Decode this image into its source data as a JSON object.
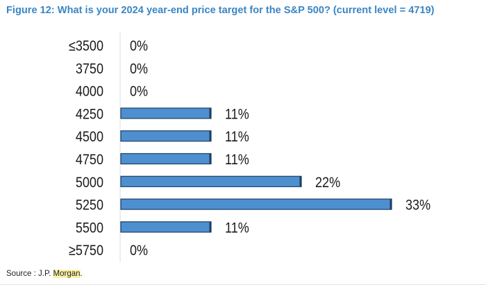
{
  "figure": {
    "title": "Figure 12: What is your 2024 year-end price target for the S&P 500? (current level = 4719)"
  },
  "source": {
    "prefix": "Source : J.P. ",
    "highlight": "Morgan",
    "suffix": "."
  },
  "colors": {
    "title": "#3a86c4",
    "bar_fill": "#4e8fd0",
    "bar_stroke": "#1b3f63",
    "text": "#1a1a1a"
  },
  "chart_data": {
    "type": "bar",
    "orientation": "horizontal",
    "title": "Figure 12: What is your 2024 year-end price target for the S&P 500? (current level = 4719)",
    "categories": [
      "≤3500",
      "3750",
      "4000",
      "4250",
      "4500",
      "4750",
      "5000",
      "5250",
      "5500",
      "≥5750"
    ],
    "values": [
      0,
      0,
      0,
      11,
      11,
      11,
      22,
      33,
      11,
      0
    ],
    "value_labels": [
      "0%",
      "0%",
      "0%",
      "11%",
      "11%",
      "11%",
      "22%",
      "33%",
      "11%",
      "0%"
    ],
    "unit": "%",
    "xlim": [
      0,
      33
    ],
    "xlabel": "",
    "ylabel": "",
    "grid": false,
    "legend": "none"
  }
}
